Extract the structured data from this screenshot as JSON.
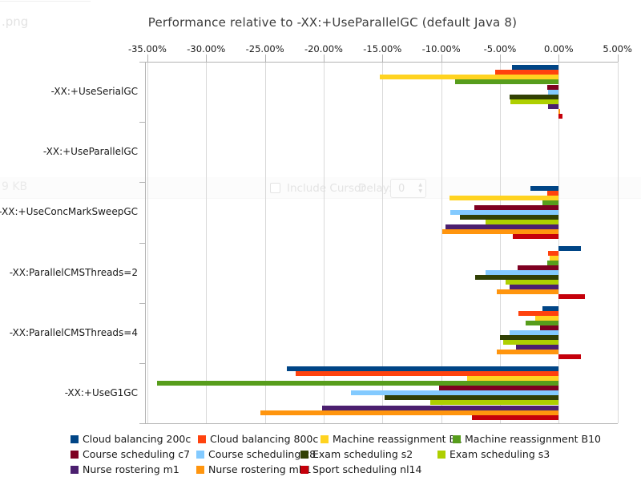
{
  "viewer_overlay": {
    "filename_fragment": ".png",
    "file_size": "9 KB",
    "include_cursor_label": "Include Cursor",
    "delay_label": "Delay:",
    "delay_value": "0",
    "spin_up_glyph": "▲",
    "spin_down_glyph": "▼"
  },
  "chart_data": {
    "type": "bar",
    "orientation": "horizontal",
    "title": "Performance relative to -XX:+UseParallelGC (default Java 8)",
    "grid": true,
    "legend_position": "bottom",
    "value_axis": {
      "unit": "%",
      "min": -35.2,
      "max": 5.05,
      "tick_values": [
        -35,
        -30,
        -25,
        -20,
        -15,
        -10,
        -5,
        0,
        5
      ],
      "tick_labels": [
        "-35.00%",
        "-30.00%",
        "-25.00%",
        "-20.00%",
        "-15.00%",
        "-10.00%",
        "-5.00%",
        "0.00%",
        "5.00%"
      ]
    },
    "categories": [
      "-XX:+UseSerialGC",
      "-XX:+UseParallelGC",
      "-XX:+UseConcMarkSweepGC",
      "-XX:ParallelCMSThreads=2",
      "-XX:ParallelCMSThreads=4",
      "-XX:+UseG1GC"
    ],
    "baseline_category": "-XX:+UseParallelGC",
    "series": [
      {
        "name": "Cloud balancing 200c",
        "color": "#004586",
        "values": [
          -4.0,
          0,
          -2.4,
          1.9,
          -1.4,
          -23.1
        ]
      },
      {
        "name": "Cloud balancing 800c",
        "color": "#FF420E",
        "values": [
          -5.4,
          0,
          -0.95,
          -0.9,
          -3.4,
          -22.4
        ]
      },
      {
        "name": "Machine reassignment B1",
        "color": "#FFD320",
        "values": [
          -15.2,
          0,
          -9.3,
          -0.75,
          -2.0,
          -7.8
        ]
      },
      {
        "name": "Machine reassignment B10",
        "color": "#579D1C",
        "values": [
          -8.8,
          0,
          -1.4,
          -0.95,
          -2.8,
          -34.2
        ]
      },
      {
        "name": "Course scheduling c7",
        "color": "#7E0021",
        "values": [
          -0.95,
          0,
          -7.2,
          -3.5,
          -1.6,
          -10.2
        ]
      },
      {
        "name": "Course scheduling c8",
        "color": "#83CAFF",
        "values": [
          -0.9,
          0,
          -9.2,
          -6.2,
          -4.2,
          -17.7
        ]
      },
      {
        "name": "Exam scheduling s2",
        "color": "#314004",
        "values": [
          -4.2,
          0,
          -8.4,
          -7.1,
          -5.0,
          -14.8
        ]
      },
      {
        "name": "Exam scheduling s3",
        "color": "#AECF00",
        "values": [
          -4.1,
          0,
          -6.2,
          -4.5,
          -4.7,
          -10.9
        ]
      },
      {
        "name": "Nurse rostering m1",
        "color": "#4B1F6F",
        "values": [
          -0.9,
          0,
          -9.6,
          -4.2,
          -3.6,
          -20.1
        ]
      },
      {
        "name": "Nurse rostering mh1",
        "color": "#FF950E",
        "values": [
          0.1,
          0,
          -9.9,
          -5.3,
          -5.3,
          -25.4
        ]
      },
      {
        "name": "Sport scheduling nl14",
        "color": "#C5000B",
        "values": [
          0.3,
          0,
          -3.9,
          2.2,
          1.9,
          -7.4
        ]
      }
    ]
  }
}
